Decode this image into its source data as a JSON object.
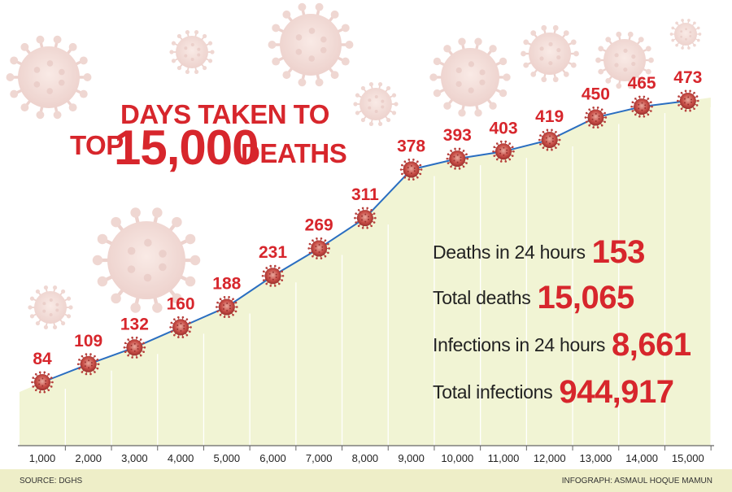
{
  "title": {
    "line1": "DAYS TAKEN TO",
    "line2_prefix": "TOP",
    "line2_big": "15,000",
    "line2_suffix": "DEATHS"
  },
  "stats": [
    {
      "label": "Deaths in 24 hours",
      "value": "153"
    },
    {
      "label": "Total deaths",
      "value": "15,065"
    },
    {
      "label": "Infections in 24 hours",
      "value": "8,661"
    },
    {
      "label": "Total infections",
      "value": "944,917"
    }
  ],
  "footer": {
    "source": "SOURCE: DGHS",
    "credit": "INFOGRAPH: ASMAUL HOQUE MAMUN"
  },
  "colors": {
    "accent_red": "#d7262c",
    "line_blue": "#2a6ec1",
    "area_fill": "#f1f4d4",
    "virus": "#c94f48"
  },
  "chart_data": {
    "type": "line",
    "x": [
      "1,000",
      "2,000",
      "3,000",
      "4,000",
      "5,000",
      "6,000",
      "7,000",
      "8,000",
      "9,000",
      "10,000",
      "11,000",
      "12,000",
      "13,000",
      "14,000",
      "15,000"
    ],
    "y": [
      84,
      109,
      132,
      160,
      188,
      231,
      269,
      311,
      378,
      393,
      403,
      419,
      450,
      465,
      473
    ],
    "data_labels": [
      "84",
      "109",
      "132",
      "160",
      "188",
      "231",
      "269",
      "311",
      "378",
      "393",
      "403",
      "419",
      "450",
      "465",
      "473"
    ],
    "ylim": [
      0,
      520
    ],
    "grid": true,
    "marker": "virus-icon"
  }
}
